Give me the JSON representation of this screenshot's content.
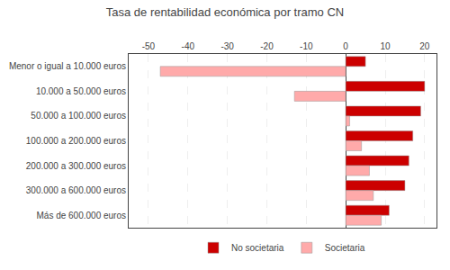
{
  "chart_data": {
    "type": "bar",
    "orientation": "horizontal",
    "title": "Tasa de rentabilidad económica por tramo CN",
    "categories": [
      "Menor o igual a 10.000 euros",
      "10.000 a 50.000 euros",
      "50.000 a 100.000 euros",
      "100.000 a 200.000 euros",
      "200.000 a 300.000 euros",
      "300.000 a 600.000 euros",
      "Más de 600.000 euros"
    ],
    "series": [
      {
        "name": "No societaria",
        "color": "#cc0000",
        "values": [
          5,
          20,
          19,
          17,
          16,
          15,
          11
        ]
      },
      {
        "name": "Societaria",
        "color": "#ffaaaa",
        "values": [
          -47,
          -13,
          1,
          4,
          6,
          7,
          9
        ]
      }
    ],
    "xlim": [
      -55,
      23
    ],
    "xticks": [
      -50,
      -40,
      -30,
      -20,
      -10,
      0,
      10,
      20
    ],
    "grid": true,
    "legend": "bottom"
  }
}
